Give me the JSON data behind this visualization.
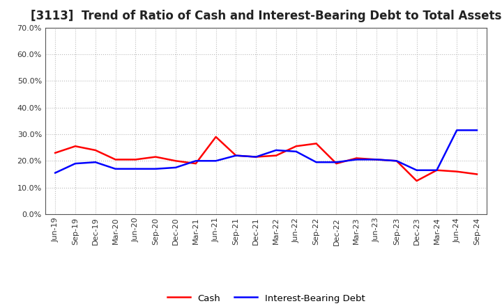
{
  "title": "[3113]  Trend of Ratio of Cash and Interest-Bearing Debt to Total Assets",
  "x_labels": [
    "Jun-19",
    "Sep-19",
    "Dec-19",
    "Mar-20",
    "Jun-20",
    "Sep-20",
    "Dec-20",
    "Mar-21",
    "Jun-21",
    "Sep-21",
    "Dec-21",
    "Mar-22",
    "Jun-22",
    "Sep-22",
    "Dec-22",
    "Mar-23",
    "Jun-23",
    "Sep-23",
    "Dec-23",
    "Mar-24",
    "Jun-24",
    "Sep-24"
  ],
  "cash": [
    23.0,
    25.5,
    24.0,
    20.5,
    20.5,
    21.5,
    20.0,
    19.0,
    29.0,
    22.0,
    21.5,
    22.0,
    25.5,
    26.5,
    19.0,
    21.0,
    20.5,
    20.0,
    12.5,
    16.5,
    16.0,
    15.0
  ],
  "ibd": [
    15.5,
    19.0,
    19.5,
    17.0,
    17.0,
    17.0,
    17.5,
    20.0,
    20.0,
    22.0,
    21.5,
    24.0,
    23.5,
    19.5,
    19.5,
    20.5,
    20.5,
    20.0,
    16.5,
    16.5,
    31.5,
    31.5
  ],
  "cash_color": "#ff0000",
  "ibd_color": "#0000ff",
  "ylim": [
    0,
    70
  ],
  "yticks": [
    0,
    10,
    20,
    30,
    40,
    50,
    60,
    70
  ],
  "background_color": "#ffffff",
  "plot_bg_color": "#ffffff",
  "grid_color": "#bbbbbb",
  "title_fontsize": 12,
  "title_color": "#222222",
  "tick_fontsize": 8,
  "legend_cash": "Cash",
  "legend_ibd": "Interest-Bearing Debt",
  "line_width": 1.8
}
